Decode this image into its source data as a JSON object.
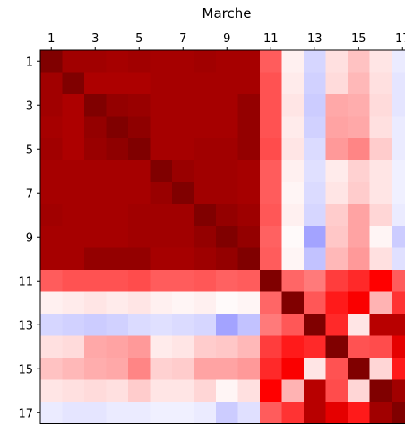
{
  "chart_data": {
    "type": "heatmap",
    "title": "Marche",
    "xlabel": "",
    "ylabel": "",
    "labels": [
      "1",
      "2",
      "3",
      "4",
      "5",
      "6",
      "7",
      "8",
      "9",
      "10",
      "11",
      "12",
      "13",
      "14",
      "15",
      "16",
      "17"
    ],
    "x_tick_labels": [
      "1",
      "3",
      "5",
      "7",
      "9",
      "11",
      "13",
      "15",
      "17"
    ],
    "y_tick_labels": [
      "1",
      "3",
      "5",
      "7",
      "9",
      "11",
      "13",
      "15",
      "17"
    ],
    "x_axis_position": "top",
    "colormap": "seismic",
    "vmin": -1,
    "vmax": 1,
    "grid": false,
    "values": [
      [
        1.0,
        0.87,
        0.87,
        0.85,
        0.87,
        0.85,
        0.85,
        0.87,
        0.85,
        0.85,
        0.32,
        0.03,
        -0.08,
        0.06,
        0.12,
        0.05,
        -0.04
      ],
      [
        0.87,
        1.0,
        0.82,
        0.82,
        0.82,
        0.85,
        0.85,
        0.85,
        0.85,
        0.85,
        0.34,
        0.04,
        -0.09,
        0.07,
        0.14,
        0.06,
        -0.05
      ],
      [
        0.87,
        0.82,
        1.0,
        0.92,
        0.9,
        0.85,
        0.85,
        0.85,
        0.85,
        0.92,
        0.34,
        0.05,
        -0.1,
        0.17,
        0.16,
        0.07,
        -0.05
      ],
      [
        0.85,
        0.82,
        0.92,
        1.0,
        0.94,
        0.85,
        0.85,
        0.85,
        0.85,
        0.92,
        0.34,
        0.04,
        -0.09,
        0.18,
        0.17,
        0.06,
        -0.04
      ],
      [
        0.87,
        0.82,
        0.9,
        0.94,
        1.0,
        0.85,
        0.85,
        0.87,
        0.87,
        0.92,
        0.35,
        0.05,
        -0.07,
        0.2,
        0.24,
        0.1,
        -0.04
      ],
      [
        0.85,
        0.85,
        0.85,
        0.85,
        0.85,
        1.0,
        0.9,
        0.87,
        0.87,
        0.85,
        0.32,
        0.03,
        -0.06,
        0.04,
        0.09,
        0.05,
        -0.03
      ],
      [
        0.85,
        0.85,
        0.85,
        0.85,
        0.85,
        0.9,
        1.0,
        0.87,
        0.87,
        0.85,
        0.32,
        0.02,
        -0.07,
        0.05,
        0.1,
        0.05,
        -0.03
      ],
      [
        0.87,
        0.85,
        0.85,
        0.85,
        0.87,
        0.87,
        0.87,
        1.0,
        0.92,
        0.88,
        0.33,
        0.03,
        -0.08,
        0.1,
        0.18,
        0.08,
        -0.04
      ],
      [
        0.85,
        0.85,
        0.85,
        0.85,
        0.87,
        0.87,
        0.87,
        0.92,
        1.0,
        0.92,
        0.31,
        0.01,
        -0.18,
        0.11,
        0.18,
        0.02,
        -0.1
      ],
      [
        0.85,
        0.85,
        0.92,
        0.92,
        0.92,
        0.85,
        0.85,
        0.88,
        0.92,
        1.0,
        0.32,
        0.02,
        -0.12,
        0.14,
        0.2,
        0.06,
        -0.06
      ],
      [
        0.32,
        0.34,
        0.34,
        0.34,
        0.35,
        0.32,
        0.32,
        0.33,
        0.31,
        0.32,
        1.0,
        0.3,
        0.26,
        0.38,
        0.42,
        0.5,
        0.32
      ],
      [
        0.03,
        0.04,
        0.05,
        0.04,
        0.05,
        0.03,
        0.02,
        0.03,
        0.01,
        0.02,
        0.3,
        1.0,
        0.33,
        0.45,
        0.52,
        0.15,
        0.4
      ],
      [
        -0.08,
        -0.09,
        -0.1,
        -0.09,
        -0.07,
        -0.06,
        -0.07,
        -0.08,
        -0.18,
        -0.12,
        0.26,
        0.33,
        1.0,
        0.42,
        0.05,
        0.78,
        0.78
      ],
      [
        0.06,
        0.07,
        0.17,
        0.18,
        0.2,
        0.04,
        0.05,
        0.1,
        0.11,
        0.14,
        0.38,
        0.45,
        0.42,
        1.0,
        0.34,
        0.35,
        0.6
      ],
      [
        0.12,
        0.14,
        0.16,
        0.17,
        0.24,
        0.09,
        0.1,
        0.18,
        0.18,
        0.2,
        0.42,
        0.52,
        0.05,
        0.34,
        1.0,
        0.08,
        0.45
      ],
      [
        0.05,
        0.06,
        0.07,
        0.06,
        0.1,
        0.05,
        0.05,
        0.08,
        0.02,
        0.06,
        0.5,
        0.15,
        0.78,
        0.35,
        0.08,
        1.0,
        0.87
      ],
      [
        -0.04,
        -0.05,
        -0.05,
        -0.04,
        -0.04,
        -0.03,
        -0.03,
        -0.04,
        -0.1,
        -0.06,
        0.32,
        0.4,
        0.78,
        0.6,
        0.45,
        0.87,
        1.0
      ]
    ]
  }
}
